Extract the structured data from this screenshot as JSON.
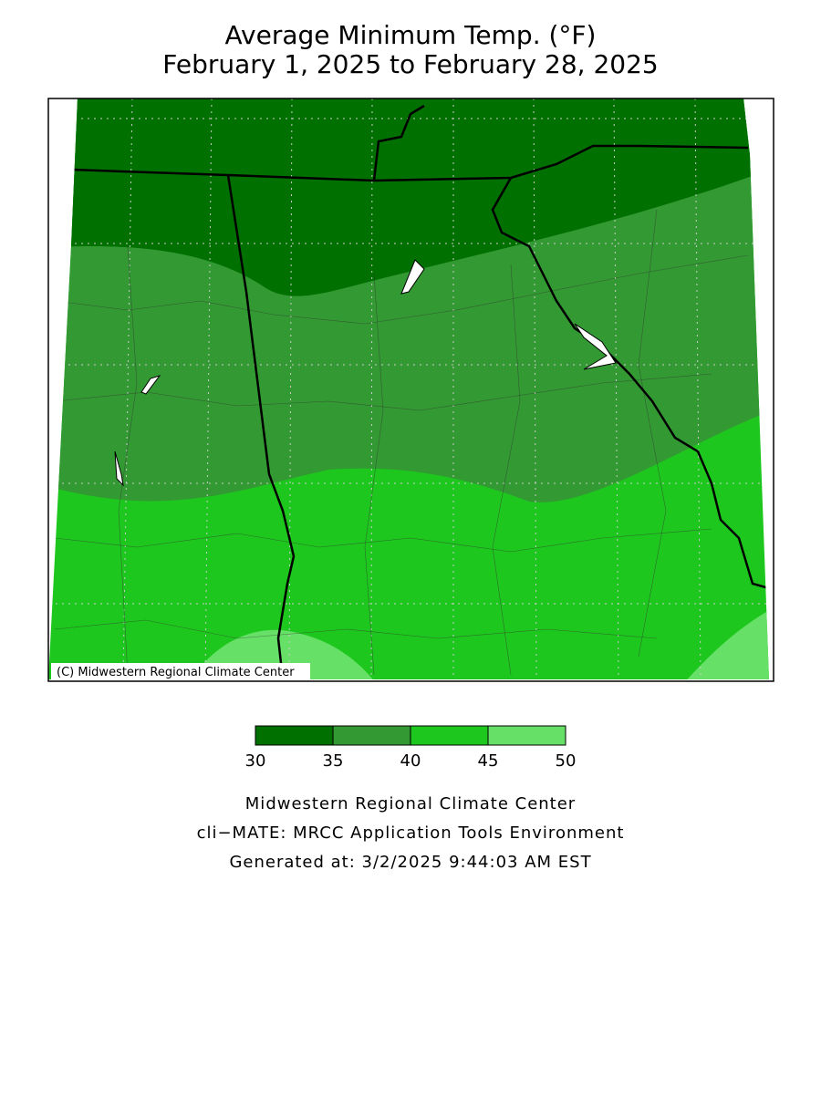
{
  "title": "Average Minimum Temp. (°F)",
  "subtitle": "February 1, 2025 to February 28, 2025",
  "map": {
    "copyright": "(C) Midwestern Regional Climate Center"
  },
  "legend": {
    "bins": [
      30,
      35,
      40,
      45,
      50
    ],
    "colors": [
      "#007000",
      "#339933",
      "#1ec71e",
      "#66e066"
    ]
  },
  "footer": [
    "Midwestern Regional Climate Center",
    "cli−MATE: MRCC Application Tools Environment",
    "Generated at: 3/2/2025 9:44:03 AM EST"
  ]
}
